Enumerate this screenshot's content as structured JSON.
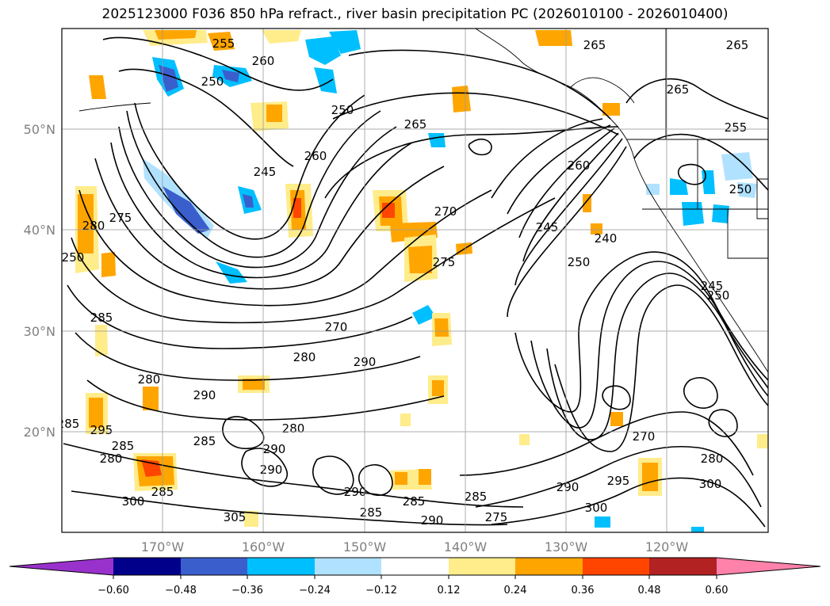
{
  "title": "2025123000 F036 850 hPa refract., river basin precipitation PC (2026010100 - 2026010400)",
  "latitude_labels": [
    "50°N",
    "40°N",
    "30°N",
    "20°N"
  ],
  "longitude_labels": [
    "170°W",
    "160°W",
    "150°W",
    "140°W",
    "130°W",
    "120°W"
  ],
  "contour_labels": [
    "255",
    "260",
    "250",
    "265",
    "265",
    "265",
    "250",
    "260",
    "245",
    "270",
    "275",
    "275",
    "280",
    "250",
    "285",
    "270",
    "280",
    "290",
    "280",
    "290",
    "295",
    "285",
    "280",
    "285",
    "290",
    "280",
    "290",
    "285",
    "300",
    "305",
    "285",
    "285",
    "285",
    "290",
    "275",
    "300",
    "295",
    "290",
    "300",
    "285",
    "270",
    "245",
    "240",
    "250",
    "245",
    "250",
    "255",
    "250",
    "265",
    "280",
    "290",
    "260"
  ],
  "colorbar": {
    "tick_labels": [
      "−0.60",
      "−0.48",
      "−0.36",
      "−0.24",
      "−0.12",
      "0.12",
      "0.24",
      "0.36",
      "0.48",
      "0.60"
    ],
    "colors": [
      "#9932CC",
      "#00008B",
      "#3A5FCD",
      "#00BFFF",
      "#B0E2FF",
      "#FFFFFF",
      "#FFEC8B",
      "#FFA500",
      "#FF4500",
      "#B22222",
      "#FF82AB"
    ]
  }
}
